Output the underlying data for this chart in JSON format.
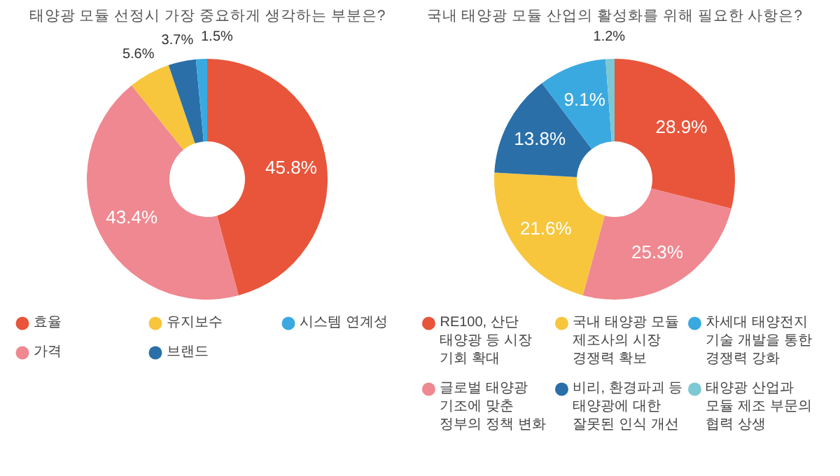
{
  "chart_data": [
    {
      "type": "donut",
      "title": "태양광 모듈 선정시 가장 중요하게 생각하는 부분은?",
      "categories": [
        "효율",
        "가격",
        "유지보수",
        "브랜드",
        "시스템 연계성"
      ],
      "values": [
        45.8,
        43.4,
        5.6,
        3.7,
        1.5
      ],
      "colors": [
        "#e8553a",
        "#ef8890",
        "#f7c63d",
        "#2a6fa8",
        "#3aa9e0"
      ],
      "value_labels": [
        "45.8%",
        "43.4%",
        "5.6%",
        "3.7%",
        "1.5%"
      ],
      "legend": "bottom"
    },
    {
      "type": "donut",
      "title": "국내 태양광 모듈 산업의 활성화를 위해 필요한 사항은?",
      "categories": [
        "RE100, 산단 태양광 등 시장 기회 확대",
        "글로벌 태양광 기조에 맞춘 정부의 정책 변화",
        "국내 태양광 모듈 제조사의 시장 경쟁력 확보",
        "비리, 환경파괴 등 태양광에 대한 잘못된 인식 개선",
        "차세대 태양전지 기술 개발을 통한 경쟁력 강화",
        "태양광 산업과 모듈 제조 부문의 협력 상생"
      ],
      "values": [
        28.9,
        25.3,
        21.6,
        13.8,
        9.1,
        1.2
      ],
      "colors": [
        "#e8553a",
        "#ef8890",
        "#f7c63d",
        "#2a6fa8",
        "#3aa9e0",
        "#7cc8d3"
      ],
      "value_labels": [
        "28.9%",
        "25.3%",
        "21.6%",
        "13.8%",
        "9.1%",
        "1.2%"
      ],
      "legend": "bottom"
    }
  ]
}
